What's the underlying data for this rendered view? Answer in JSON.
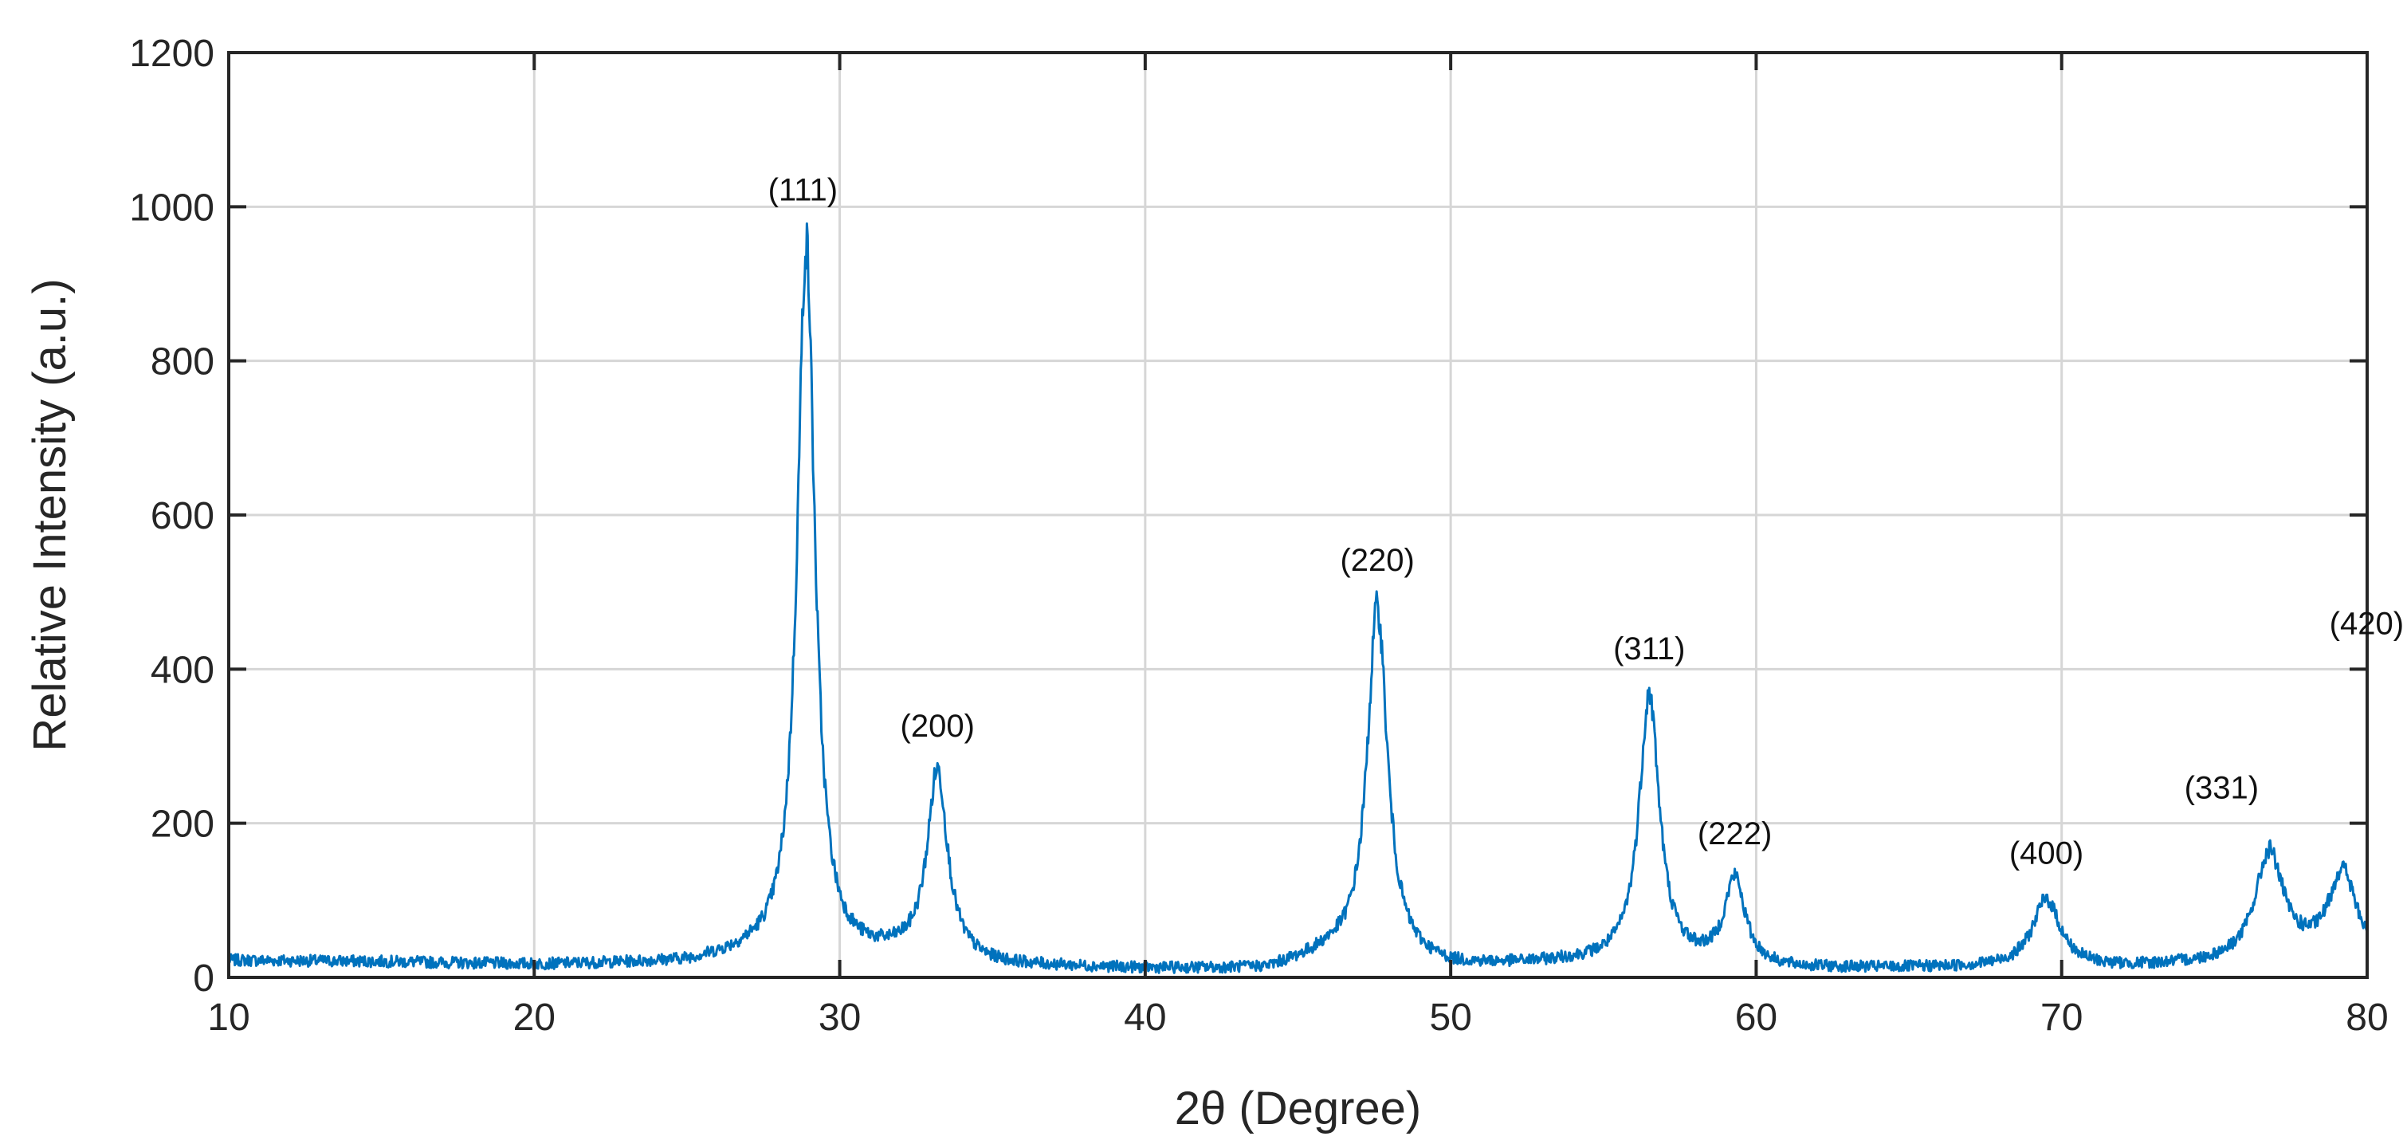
{
  "chart_data": {
    "type": "line",
    "title": "",
    "xlabel": "2θ (Degree)",
    "ylabel": "Relative Intensity (a.u.)",
    "xlim": [
      10,
      80
    ],
    "ylim": [
      0,
      1200
    ],
    "xticks": [
      10,
      20,
      30,
      40,
      50,
      60,
      70,
      80
    ],
    "yticks": [
      0,
      200,
      400,
      600,
      800,
      1000,
      1200
    ],
    "grid": true,
    "line_color": "#0072BD",
    "baseline": [
      [
        10,
        22
      ],
      [
        15,
        20
      ],
      [
        20,
        16
      ],
      [
        25,
        18
      ],
      [
        27,
        26
      ],
      [
        30,
        22
      ],
      [
        32,
        25
      ],
      [
        35,
        14
      ],
      [
        40,
        10
      ],
      [
        44,
        9
      ],
      [
        46,
        28
      ],
      [
        50,
        12
      ],
      [
        54,
        18
      ],
      [
        58,
        16
      ],
      [
        61,
        10
      ],
      [
        68,
        12
      ],
      [
        72,
        12
      ],
      [
        76,
        18
      ],
      [
        78,
        24
      ],
      [
        80,
        18
      ]
    ],
    "peaks": [
      {
        "label": "(111)",
        "x": 28.9,
        "y": 950
      },
      {
        "label": "(200)",
        "x": 33.2,
        "y": 265
      },
      {
        "label": "(220)",
        "x": 47.6,
        "y": 480
      },
      {
        "label": "(311)",
        "x": 56.5,
        "y": 365
      },
      {
        "label": "(222)",
        "x": 59.3,
        "y": 125
      },
      {
        "label": "(400)",
        "x": 69.5,
        "y": 100
      },
      {
        "label": "(331)",
        "x": 76.8,
        "y": 160
      },
      {
        "label": "(420)",
        "x": 79.2,
        "y": 135
      }
    ]
  }
}
